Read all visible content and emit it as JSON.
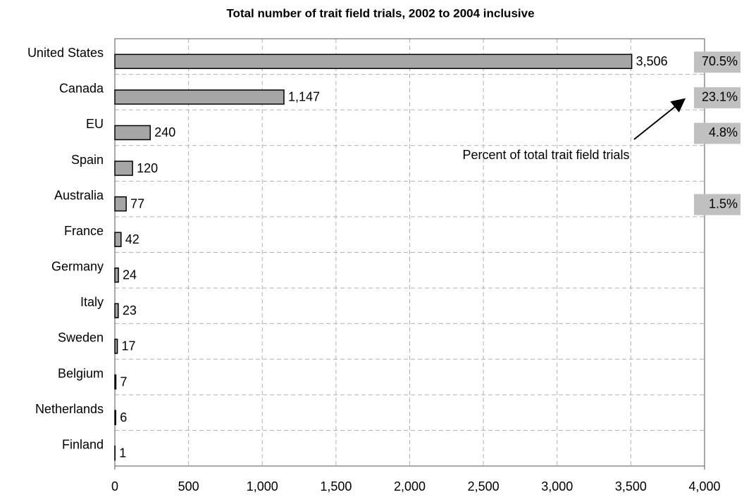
{
  "chart_data": {
    "type": "bar",
    "orientation": "horizontal",
    "title": "Total number of trait field trials, 2002 to 2004 inclusive",
    "categories": [
      "United States",
      "Canada",
      "EU",
      "Spain",
      "Australia",
      "France",
      "Germany",
      "Italy",
      "Sweden",
      "Belgium",
      "Netherlands",
      "Finland"
    ],
    "values": [
      3506,
      1147,
      240,
      120,
      77,
      42,
      24,
      23,
      17,
      7,
      6,
      1
    ],
    "value_labels": [
      "3,506",
      "1,147",
      "240",
      "120",
      "77",
      "42",
      "24",
      "23",
      "17",
      "7",
      "6",
      "1"
    ],
    "color": "#a6a6a6",
    "percent_of_total": {
      "values": [
        70.5,
        23.1,
        4.8,
        null,
        1.5,
        null,
        null,
        null,
        null,
        null,
        null,
        null
      ],
      "value_labels": [
        "70.5%",
        "23.1%",
        "4.8%",
        null,
        "1.5%",
        null,
        null,
        null,
        null,
        null,
        null,
        null
      ],
      "color": "#c0c0c0"
    },
    "annotation": "Percent of total trait field trials",
    "xlim": [
      0,
      4000
    ],
    "xticks": [
      0,
      500,
      {
        "value": 1000,
        "label": "1,000"
      },
      {
        "value": 1500,
        "label": "1,500"
      },
      {
        "value": 2000,
        "label": "2,000"
      },
      {
        "value": 2500,
        "label": "2,500"
      },
      {
        "value": 3000,
        "label": "3,000"
      },
      {
        "value": 3500,
        "label": "3,500"
      },
      {
        "value": 4000,
        "label": "4,000"
      }
    ],
    "grid": true
  }
}
